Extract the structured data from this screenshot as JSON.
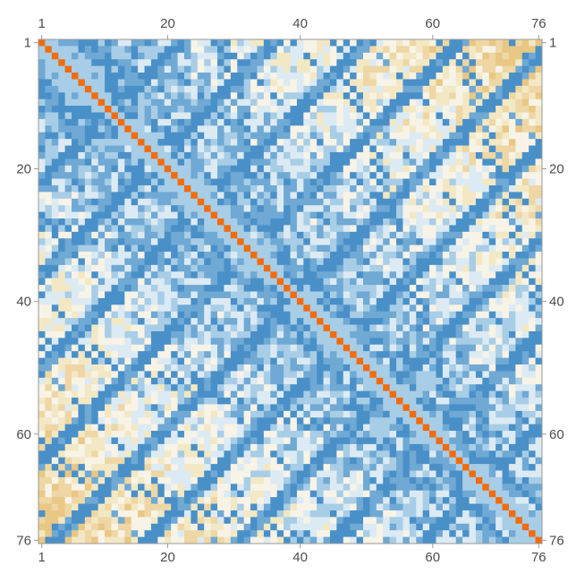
{
  "chart_data": {
    "type": "heatmap",
    "title": "",
    "xlabel": "",
    "ylabel": "",
    "rows": 76,
    "cols": 76,
    "x_ticks": [
      1,
      20,
      40,
      60,
      76
    ],
    "y_ticks": [
      1,
      20,
      40,
      60,
      76
    ],
    "y_axis_direction": "top-to-bottom",
    "diagonal_color": "#f26b0c",
    "palette": [
      "#4a90c8",
      "#6fa9d4",
      "#a8cde6",
      "#dceaf3",
      "#f7f3e6",
      "#f3e8c4",
      "#eed7a4",
      "#e9c784"
    ],
    "structure": {
      "diagonal": "self-match, orange",
      "near_diagonal_bands": "light blue",
      "off_diagonal_arcs": "dark blue curved bands forming nested loop patterns",
      "background": "mixed pale blue and beige/tan noise"
    }
  }
}
